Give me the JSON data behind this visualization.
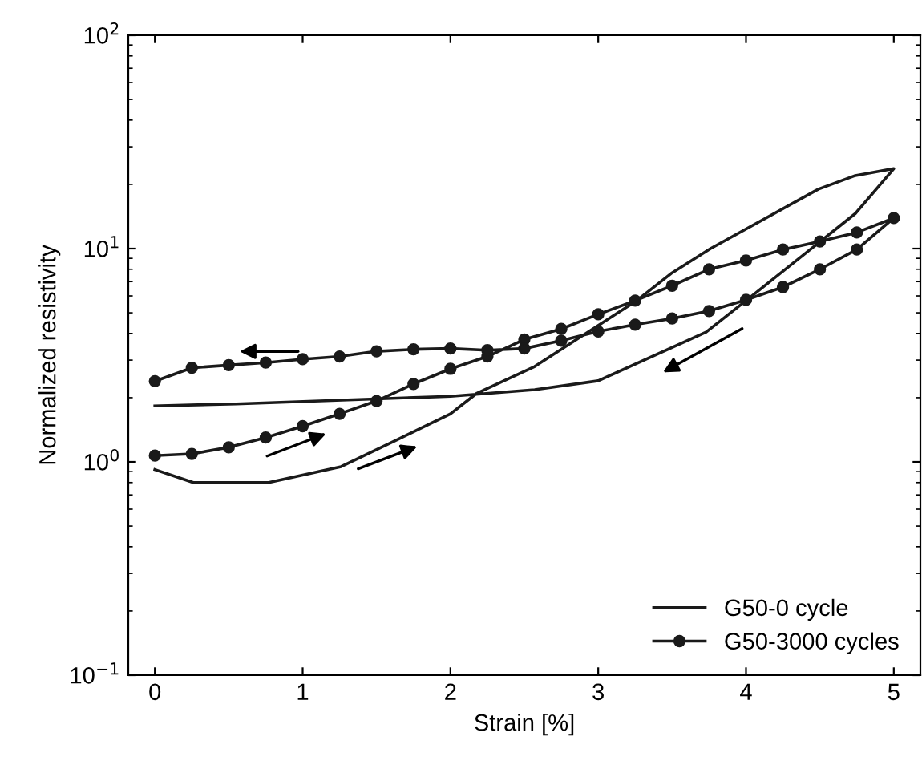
{
  "chart_data": {
    "type": "line",
    "xlabel": "Strain [%]",
    "ylabel": "Normalized resistivity",
    "log": "y",
    "xlim": [
      -0.18,
      5.18
    ],
    "xticks": [
      0,
      1,
      2,
      3,
      4,
      5
    ],
    "ylim": [
      0.1,
      100
    ],
    "yticks": [
      {
        "value": 0.1,
        "label": "10$^{−1}$"
      },
      {
        "value": 1,
        "label": "10$^{0}$"
      },
      {
        "value": 10,
        "label": "10$^{1}$"
      },
      {
        "value": 100,
        "label": "10$^{2}$"
      }
    ],
    "grid": false,
    "legend": "bottom right",
    "series": [
      {
        "name": "G50-0 cycle",
        "color": "#1a1a1a",
        "marker": "none",
        "x": [
          0,
          0.26,
          0.77,
          1.26,
          1.62,
          2.0,
          2.18,
          2.57,
          3.26,
          3.5,
          3.76,
          4.49,
          4.74,
          5.0,
          4.74,
          4.0,
          3.73,
          3.0,
          2.57,
          2.0,
          0.55,
          0
        ],
        "values": [
          0.92,
          0.8,
          0.8,
          0.95,
          1.25,
          1.68,
          2.1,
          2.8,
          5.7,
          7.7,
          10,
          19,
          22,
          23.7,
          14.6,
          5.7,
          4.06,
          2.4,
          2.18,
          2.03,
          1.87,
          1.83
        ]
      },
      {
        "name": "G50-3000 cycles",
        "color": "#1a1a1a",
        "marker": "circle",
        "x": [
          0,
          0.25,
          0.5,
          0.75,
          1.0,
          1.25,
          1.5,
          1.75,
          2.0,
          2.25,
          2.5,
          2.75,
          3.0,
          3.25,
          3.5,
          3.75,
          4.0,
          4.25,
          4.5,
          4.75,
          5.0,
          4.75,
          4.5,
          4.25,
          4.0,
          3.75,
          3.5,
          3.25,
          3.0,
          2.75,
          2.5,
          2.25,
          2.0,
          1.75,
          1.5,
          1.25,
          1.0,
          0.75,
          0.5,
          0.25,
          0
        ],
        "values": [
          1.07,
          1.09,
          1.17,
          1.3,
          1.47,
          1.68,
          1.93,
          2.32,
          2.73,
          3.12,
          3.75,
          4.2,
          4.92,
          5.7,
          6.7,
          8.0,
          8.8,
          9.9,
          10.8,
          11.9,
          13.9,
          9.9,
          8.0,
          6.6,
          5.75,
          5.1,
          4.7,
          4.4,
          4.09,
          3.7,
          3.4,
          3.34,
          3.4,
          3.37,
          3.3,
          3.12,
          3.03,
          2.92,
          2.84,
          2.76,
          2.39
        ]
      }
    ]
  }
}
